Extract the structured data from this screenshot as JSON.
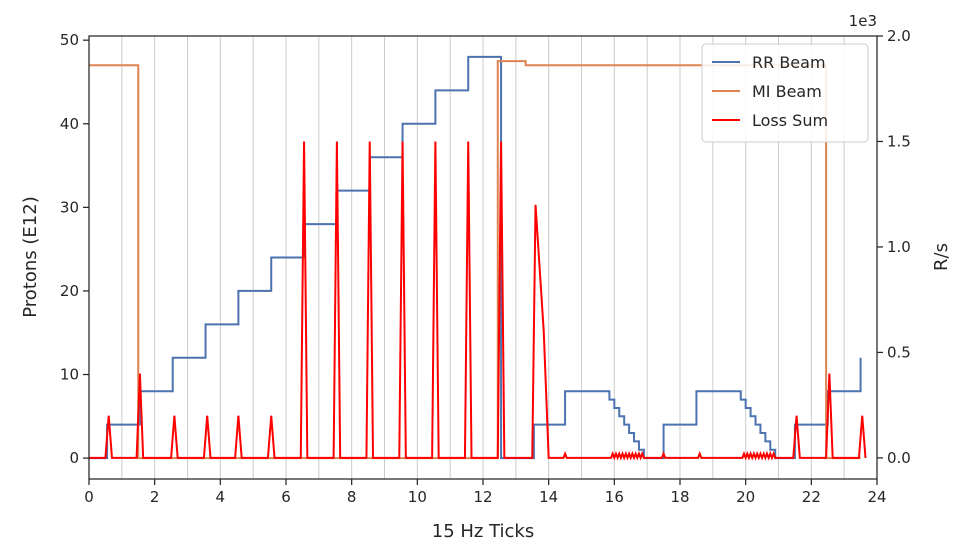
{
  "chart_data": {
    "type": "line",
    "title": "",
    "xlabel": "15 Hz Ticks",
    "ylabel_left": "Protons (E12)",
    "ylabel_right": "R/s",
    "right_axis_offset_text": "1e3",
    "xlim": [
      0,
      24
    ],
    "ylim_left": [
      -2.5,
      50.5
    ],
    "ylim_right": [
      -0.1,
      2.0
    ],
    "x_ticks": [
      0,
      2,
      4,
      6,
      8,
      10,
      12,
      14,
      16,
      18,
      20,
      22,
      24
    ],
    "y_left_ticks": [
      0,
      10,
      20,
      30,
      40,
      50
    ],
    "y_right_ticks": [
      0.0,
      0.5,
      1.0,
      1.5,
      2.0
    ],
    "x_tick_labels": [
      "0",
      "2",
      "4",
      "6",
      "8",
      "10",
      "12",
      "14",
      "16",
      "18",
      "20",
      "22",
      "24"
    ],
    "y_left_tick_labels": [
      "0",
      "10",
      "20",
      "30",
      "40",
      "50"
    ],
    "y_right_tick_labels": [
      "0.0",
      "0.5",
      "1.0",
      "1.5",
      "2.0"
    ],
    "vertical_grid_x": [
      0,
      1,
      2,
      3,
      4,
      5,
      6,
      7,
      8,
      9,
      10,
      11,
      12,
      13,
      14,
      15,
      16,
      17,
      18,
      19,
      20,
      21,
      22,
      23,
      24
    ],
    "legend_position": "top-right",
    "series": [
      {
        "name": "RR Beam",
        "axis": "left",
        "color": "#4c72b0",
        "x": [
          0,
          0.55,
          0.55,
          1.55,
          1.55,
          2.55,
          2.55,
          3.55,
          3.55,
          4.55,
          4.55,
          5.55,
          5.55,
          6.55,
          6.55,
          7.55,
          7.55,
          8.55,
          8.55,
          9.55,
          9.55,
          10.55,
          10.55,
          11.55,
          11.55,
          12.55,
          12.55,
          13.55,
          13.55,
          14.5,
          14.5,
          15.85,
          15.85,
          16.0,
          16.0,
          16.15,
          16.15,
          16.3,
          16.3,
          16.45,
          16.45,
          16.6,
          16.6,
          16.75,
          16.75,
          16.9,
          16.9,
          17.5,
          17.5,
          18.5,
          18.5,
          19.85,
          19.85,
          20.0,
          20.0,
          20.15,
          20.15,
          20.3,
          20.3,
          20.45,
          20.45,
          20.6,
          20.6,
          20.75,
          20.75,
          20.9,
          20.9,
          21.5,
          21.5,
          22.5,
          22.5,
          23.5,
          23.5
        ],
        "y": [
          0,
          0,
          4,
          4,
          8,
          8,
          12,
          12,
          16,
          16,
          20,
          20,
          24,
          24,
          28,
          28,
          32,
          32,
          36,
          36,
          40,
          40,
          44,
          44,
          48,
          48,
          0,
          0,
          4,
          4,
          8,
          8,
          7,
          7,
          6,
          6,
          5,
          5,
          4,
          4,
          3,
          3,
          2,
          2,
          1,
          1,
          0,
          0,
          4,
          4,
          8,
          8,
          7,
          7,
          6,
          6,
          5,
          5,
          4,
          4,
          3,
          3,
          2,
          2,
          1,
          1,
          0,
          0,
          4,
          4,
          8,
          8,
          12
        ]
      },
      {
        "name": "MI Beam",
        "axis": "left",
        "color": "#dd8452",
        "x": [
          0,
          1.5,
          1.5,
          12.45,
          12.45,
          13.3,
          13.3,
          22.45,
          22.45,
          23.5
        ],
        "y": [
          47,
          47,
          0,
          0,
          47.5,
          47.5,
          47,
          47,
          0,
          0
        ]
      },
      {
        "name": "Loss Sum",
        "axis": "right",
        "color": "#ff0000",
        "x": [
          0,
          0.5,
          0.6,
          0.7,
          1.45,
          1.55,
          1.65,
          2.5,
          2.6,
          2.7,
          3.5,
          3.6,
          3.7,
          4.45,
          4.55,
          4.65,
          5.45,
          5.55,
          5.65,
          6.45,
          6.55,
          6.65,
          7.45,
          7.55,
          7.65,
          8.45,
          8.55,
          8.65,
          9.45,
          9.55,
          9.65,
          10.45,
          10.55,
          10.65,
          11.45,
          11.55,
          11.65,
          12.45,
          12.55,
          12.65,
          13.5,
          13.6,
          13.85,
          14.0,
          14.45,
          14.5,
          14.55,
          15.9,
          15.95,
          16.0,
          16.05,
          16.1,
          16.15,
          16.2,
          16.25,
          16.3,
          16.35,
          16.4,
          16.45,
          16.5,
          16.55,
          16.6,
          16.65,
          16.7,
          16.75,
          16.8,
          16.85,
          16.9,
          17.45,
          17.5,
          17.55,
          18.55,
          18.6,
          18.65,
          19.9,
          19.95,
          20.0,
          20.05,
          20.1,
          20.15,
          20.2,
          20.25,
          20.3,
          20.35,
          20.4,
          20.45,
          20.5,
          20.55,
          20.6,
          20.65,
          20.7,
          20.75,
          20.8,
          20.85,
          20.9,
          21.45,
          21.55,
          21.65,
          22.45,
          22.55,
          22.65,
          23.45,
          23.55,
          23.65
        ],
        "y": [
          0,
          0,
          0.2,
          0,
          0,
          0.4,
          0,
          0,
          0.2,
          0,
          0,
          0.2,
          0,
          0,
          0.2,
          0,
          0,
          0.2,
          0,
          0,
          1.5,
          0,
          0,
          1.5,
          0,
          0,
          1.5,
          0,
          0,
          1.5,
          0,
          0,
          1.5,
          0,
          0,
          1.5,
          0,
          0,
          1.5,
          0,
          0,
          1.2,
          0.6,
          0,
          0,
          0.02,
          0,
          0,
          0.02,
          0,
          0.02,
          0,
          0.02,
          0,
          0.02,
          0,
          0.02,
          0,
          0.02,
          0,
          0.02,
          0,
          0.02,
          0,
          0.02,
          0,
          0.02,
          0,
          0,
          0.02,
          0,
          0,
          0.02,
          0,
          0,
          0.02,
          0,
          0.02,
          0,
          0.02,
          0,
          0.02,
          0,
          0.02,
          0,
          0.02,
          0,
          0.02,
          0,
          0.02,
          0,
          0.02,
          0,
          0.02,
          0,
          0,
          0.2,
          0,
          0,
          0.4,
          0,
          0,
          0.2,
          0
        ]
      }
    ]
  }
}
